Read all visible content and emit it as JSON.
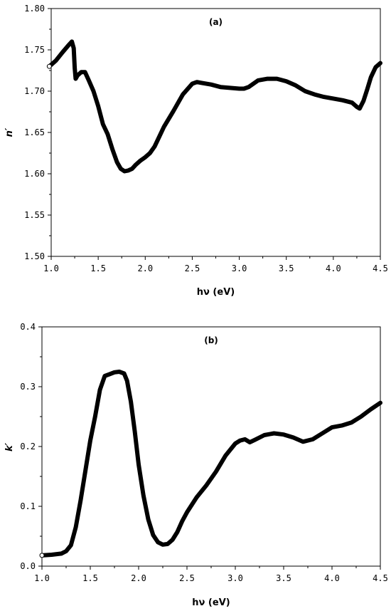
{
  "chart_data": [
    {
      "type": "line",
      "panel_label": "(a)",
      "xlabel": "hν (eV)",
      "ylabel": "n′",
      "xlim": [
        1.0,
        4.5
      ],
      "ylim": [
        1.5,
        1.8
      ],
      "xticks": [
        "1.0",
        "1.5",
        "2.0",
        "2.5",
        "3.0",
        "3.5",
        "4.0",
        "4.5"
      ],
      "yticks": [
        "1.50",
        "1.55",
        "1.60",
        "1.65",
        "1.70",
        "1.75",
        "1.80"
      ],
      "grid": false,
      "series": [
        {
          "x": [
            0.98,
            1.05,
            1.12,
            1.18,
            1.22,
            1.24,
            1.25,
            1.26,
            1.28,
            1.32,
            1.36,
            1.4,
            1.45,
            1.5,
            1.55,
            1.6,
            1.65,
            1.7,
            1.74,
            1.78,
            1.82,
            1.86,
            1.9,
            1.95,
            2.0,
            2.05,
            2.1,
            2.15,
            2.2,
            2.3,
            2.4,
            2.5,
            2.55,
            2.6,
            2.7,
            2.8,
            2.9,
            3.0,
            3.05,
            3.1,
            3.2,
            3.3,
            3.4,
            3.5,
            3.6,
            3.7,
            3.8,
            3.9,
            4.0,
            4.1,
            4.2,
            4.25,
            4.28,
            4.32,
            4.36,
            4.4,
            4.45,
            4.5
          ],
          "y": [
            1.73,
            1.737,
            1.747,
            1.755,
            1.76,
            1.752,
            1.728,
            1.715,
            1.719,
            1.723,
            1.723,
            1.713,
            1.7,
            1.682,
            1.66,
            1.648,
            1.63,
            1.614,
            1.606,
            1.603,
            1.604,
            1.606,
            1.611,
            1.616,
            1.62,
            1.625,
            1.633,
            1.645,
            1.657,
            1.676,
            1.696,
            1.709,
            1.711,
            1.71,
            1.708,
            1.705,
            1.704,
            1.703,
            1.703,
            1.705,
            1.713,
            1.715,
            1.715,
            1.712,
            1.707,
            1.7,
            1.696,
            1.693,
            1.691,
            1.689,
            1.686,
            1.681,
            1.679,
            1.688,
            1.702,
            1.717,
            1.729,
            1.734
          ]
        }
      ]
    },
    {
      "type": "line",
      "panel_label": "(b)",
      "xlabel": "hν (eV)",
      "ylabel": "k′",
      "xlim": [
        1.0,
        4.5
      ],
      "ylim": [
        0.0,
        0.4
      ],
      "xticks": [
        "1.0",
        "1.5",
        "2.0",
        "2.5",
        "3.0",
        "3.5",
        "4.0",
        "4.5"
      ],
      "yticks": [
        "0.0",
        "0.1",
        "0.2",
        "0.3",
        "0.4"
      ],
      "grid": false,
      "series": [
        {
          "x": [
            1.0,
            1.1,
            1.2,
            1.25,
            1.3,
            1.35,
            1.4,
            1.45,
            1.5,
            1.55,
            1.6,
            1.65,
            1.7,
            1.75,
            1.8,
            1.85,
            1.88,
            1.92,
            1.96,
            2.0,
            2.05,
            2.1,
            2.15,
            2.2,
            2.25,
            2.3,
            2.35,
            2.4,
            2.45,
            2.5,
            2.6,
            2.7,
            2.8,
            2.9,
            3.0,
            3.05,
            3.1,
            3.15,
            3.2,
            3.3,
            3.4,
            3.5,
            3.6,
            3.7,
            3.8,
            3.9,
            4.0,
            4.1,
            4.2,
            4.3,
            4.4,
            4.5
          ],
          "y": [
            0.018,
            0.019,
            0.021,
            0.025,
            0.035,
            0.065,
            0.11,
            0.16,
            0.21,
            0.25,
            0.295,
            0.318,
            0.321,
            0.324,
            0.325,
            0.322,
            0.31,
            0.275,
            0.225,
            0.17,
            0.118,
            0.078,
            0.052,
            0.04,
            0.036,
            0.037,
            0.044,
            0.057,
            0.075,
            0.09,
            0.115,
            0.135,
            0.158,
            0.185,
            0.205,
            0.21,
            0.212,
            0.207,
            0.211,
            0.219,
            0.222,
            0.22,
            0.215,
            0.208,
            0.212,
            0.222,
            0.232,
            0.235,
            0.24,
            0.25,
            0.262,
            0.273
          ]
        }
      ]
    }
  ]
}
